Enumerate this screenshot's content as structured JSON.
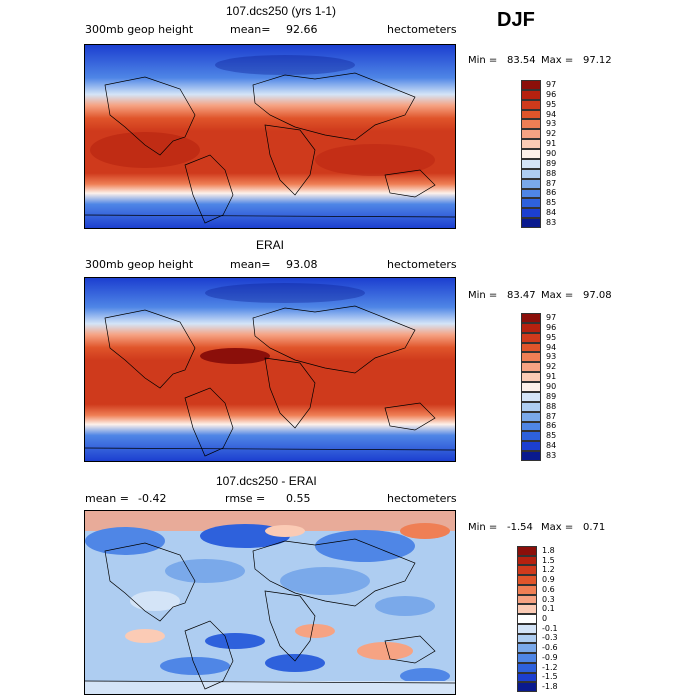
{
  "season": "DJF",
  "panels": [
    {
      "title": "107.dcs250 (yrs 1-1)",
      "field_label": "300mb geop height",
      "mean_label": "mean=",
      "mean_value": "92.66",
      "units": "hectometers",
      "min_label": "Min =",
      "min_value": "83.54",
      "max_label": "Max =",
      "max_value": "97.12",
      "colorbar": {
        "labels": [
          "97",
          "96",
          "95",
          "94",
          "93",
          "92",
          "91",
          "90",
          "89",
          "88",
          "87",
          "86",
          "85",
          "84",
          "83"
        ],
        "colors": [
          "#8b0f0a",
          "#b5210f",
          "#cf3a1c",
          "#e0552b",
          "#ef7f55",
          "#f6a383",
          "#fbcbb5",
          "#fdf1ea",
          "#d4e4f7",
          "#aecdf1",
          "#7aa9ea",
          "#4f86e6",
          "#2e61dc",
          "#1c3fd0",
          "#0a1a8e"
        ]
      }
    },
    {
      "title": "ERAI",
      "field_label": "300mb geop height",
      "mean_label": "mean=",
      "mean_value": "93.08",
      "units": "hectometers",
      "min_label": "Min =",
      "min_value": "83.47",
      "max_label": "Max =",
      "max_value": "97.08",
      "colorbar": {
        "labels": [
          "97",
          "96",
          "95",
          "94",
          "93",
          "92",
          "91",
          "90",
          "89",
          "88",
          "87",
          "86",
          "85",
          "84",
          "83"
        ],
        "colors": [
          "#8b0f0a",
          "#b5210f",
          "#cf3a1c",
          "#e0552b",
          "#ef7f55",
          "#f6a383",
          "#fbcbb5",
          "#fdf1ea",
          "#d4e4f7",
          "#aecdf1",
          "#7aa9ea",
          "#4f86e6",
          "#2e61dc",
          "#1c3fd0",
          "#0a1a8e"
        ]
      }
    },
    {
      "title": "107.dcs250 - ERAI",
      "mean_label": "mean =",
      "mean_value": "-0.42",
      "rmse_label": "rmse =",
      "rmse_value": "0.55",
      "units": "hectometers",
      "min_label": "Min =",
      "min_value": "-1.54",
      "max_label": "Max =",
      "max_value": "0.71",
      "colorbar": {
        "labels": [
          "1.8",
          "1.5",
          "1.2",
          "0.9",
          "0.6",
          "0.3",
          "0.1",
          "0",
          "-0.1",
          "-0.3",
          "-0.6",
          "-0.9",
          "-1.2",
          "-1.5",
          "-1.8"
        ],
        "colors": [
          "#8b0f0a",
          "#b5210f",
          "#cf3a1c",
          "#e0552b",
          "#ef7f55",
          "#f6a383",
          "#fbcbb5",
          "#ffffff",
          "#d4e4f7",
          "#aecdf1",
          "#7aa9ea",
          "#4f86e6",
          "#2e61dc",
          "#1c3fd0",
          "#0a1a8e"
        ]
      }
    }
  ]
}
